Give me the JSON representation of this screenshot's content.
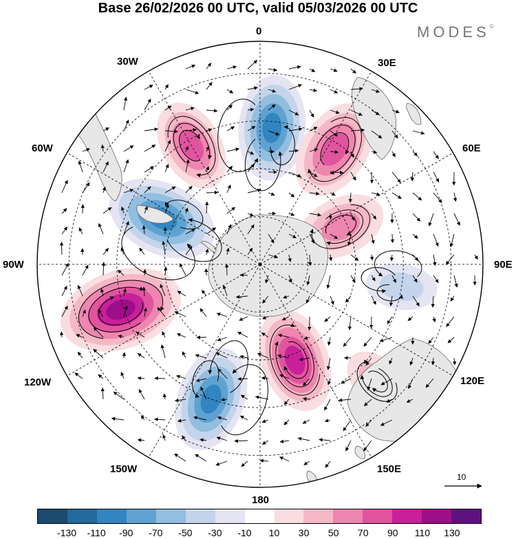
{
  "title": "Base 26/02/2026 00 UTC, valid 05/03/2026 00 UTC",
  "brand": "MODES",
  "brand_mark": "©",
  "longitude_labels": {
    "lon_0": "0",
    "lon_30e": "30E",
    "lon_60e": "60E",
    "lon_90e": "90E",
    "lon_120e": "120E",
    "lon_150e": "150E",
    "lon_180": "180",
    "lon_150w": "150W",
    "lon_120w": "120W",
    "lon_90w": "90W",
    "lon_60w": "60W",
    "lon_30w": "30W"
  },
  "vector_scale": "10",
  "colorbar": {
    "colors": [
      "#1d4a6f",
      "#22699c",
      "#3285c0",
      "#5fa2d1",
      "#93bedf",
      "#c4d4ea",
      "#e4e4f2",
      "#ffffff",
      "#f9dde0",
      "#f5b8c6",
      "#ee86b0",
      "#e0559e",
      "#c8209a",
      "#9e0e88",
      "#5e1280"
    ],
    "ticks": [
      "-130",
      "-110",
      "-90",
      "-70",
      "-50",
      "-30",
      "-10",
      "10",
      "30",
      "50",
      "70",
      "90",
      "110",
      "130"
    ]
  },
  "anomaly_centers": [
    {
      "name": "anom-atlantic-low",
      "lon": 5,
      "lat": -47,
      "value": -95
    },
    {
      "name": "anom-southafrica-high",
      "lon": 33,
      "lat": -47,
      "value": 90
    },
    {
      "name": "anom-southatlantic-high",
      "lon": -30,
      "lat": -47,
      "value": 75
    },
    {
      "name": "anom-drake-low",
      "lon": -65,
      "lat": -56,
      "value": -105
    },
    {
      "name": "anom-indian-high",
      "lon": 65,
      "lat": -62,
      "value": 70
    },
    {
      "name": "anom-east-low",
      "lon": 99,
      "lat": -45,
      "value": -40
    },
    {
      "name": "anom-pacific-high",
      "lon": -108,
      "lat": -44,
      "value": 125
    },
    {
      "name": "anom-ross-low",
      "lon": -160,
      "lat": -45,
      "value": -95
    },
    {
      "name": "anom-nz-high",
      "lon": 160,
      "lat": -58,
      "value": 95
    },
    {
      "name": "anom-tasman-high",
      "lon": 135,
      "lat": -38,
      "value": 40
    }
  ]
}
